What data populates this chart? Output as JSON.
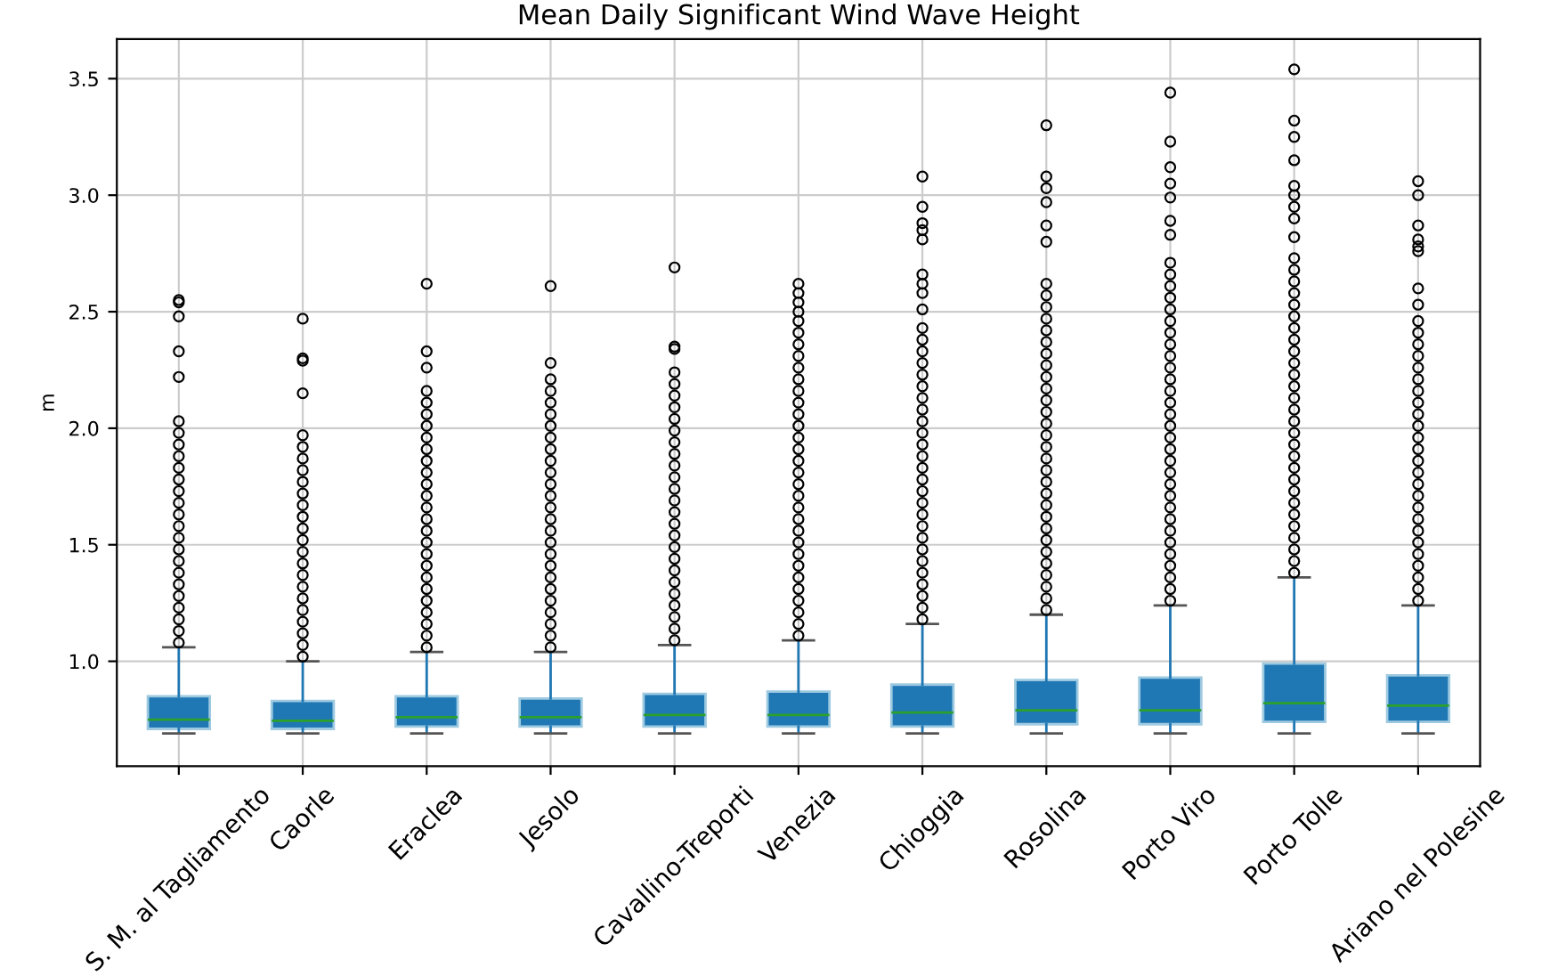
{
  "chart_data": {
    "type": "box",
    "title": "Mean Daily Significant Wind Wave Height",
    "ylabel": "m",
    "categories": [
      "S. M. al Tagliamento",
      "Caorle",
      "Eraclea",
      "Jesolo",
      "Cavallino-Treporti",
      "Venezia",
      "Chioggia",
      "Rosolina",
      "Porto Viro",
      "Porto Tolle",
      "Ariano nel Polesine"
    ],
    "series": [
      {
        "color": "#1f77b4",
        "boxes": [
          {
            "low": 0.69,
            "q1": 0.71,
            "median": 0.75,
            "q3": 0.85,
            "high": 1.06,
            "outliers": [
              1.08,
              1.13,
              1.18,
              1.23,
              1.28,
              1.33,
              1.38,
              1.43,
              1.48,
              1.53,
              1.58,
              1.63,
              1.68,
              1.73,
              1.78,
              1.83,
              1.88,
              1.93,
              1.98,
              2.03,
              2.22,
              2.33,
              2.48,
              2.54,
              2.55
            ]
          },
          {
            "low": 0.69,
            "q1": 0.71,
            "median": 0.745,
            "q3": 0.83,
            "high": 1.0,
            "outliers": [
              1.02,
              1.07,
              1.12,
              1.17,
              1.22,
              1.27,
              1.32,
              1.37,
              1.42,
              1.47,
              1.52,
              1.57,
              1.62,
              1.67,
              1.72,
              1.77,
              1.82,
              1.87,
              1.92,
              1.97,
              2.15,
              2.29,
              2.3,
              2.47
            ]
          },
          {
            "low": 0.69,
            "q1": 0.72,
            "median": 0.76,
            "q3": 0.85,
            "high": 1.04,
            "outliers": [
              1.06,
              1.11,
              1.16,
              1.21,
              1.26,
              1.31,
              1.36,
              1.41,
              1.46,
              1.51,
              1.56,
              1.61,
              1.66,
              1.71,
              1.76,
              1.81,
              1.86,
              1.91,
              1.96,
              2.01,
              2.06,
              2.11,
              2.16,
              2.26,
              2.33,
              2.62
            ]
          },
          {
            "low": 0.69,
            "q1": 0.72,
            "median": 0.76,
            "q3": 0.84,
            "high": 1.04,
            "outliers": [
              1.06,
              1.11,
              1.16,
              1.21,
              1.26,
              1.31,
              1.36,
              1.41,
              1.46,
              1.51,
              1.56,
              1.61,
              1.66,
              1.71,
              1.76,
              1.81,
              1.86,
              1.91,
              1.96,
              2.01,
              2.06,
              2.11,
              2.16,
              2.21,
              2.28,
              2.61
            ]
          },
          {
            "low": 0.69,
            "q1": 0.72,
            "median": 0.77,
            "q3": 0.86,
            "high": 1.07,
            "outliers": [
              1.09,
              1.14,
              1.19,
              1.24,
              1.29,
              1.34,
              1.39,
              1.44,
              1.49,
              1.54,
              1.59,
              1.64,
              1.69,
              1.74,
              1.79,
              1.84,
              1.89,
              1.94,
              1.99,
              2.04,
              2.09,
              2.14,
              2.19,
              2.24,
              2.34,
              2.35,
              2.69
            ]
          },
          {
            "low": 0.69,
            "q1": 0.72,
            "median": 0.77,
            "q3": 0.87,
            "high": 1.09,
            "outliers": [
              1.11,
              1.16,
              1.21,
              1.26,
              1.31,
              1.36,
              1.41,
              1.46,
              1.51,
              1.56,
              1.61,
              1.66,
              1.71,
              1.76,
              1.81,
              1.86,
              1.91,
              1.96,
              2.01,
              2.06,
              2.11,
              2.16,
              2.21,
              2.26,
              2.31,
              2.36,
              2.41,
              2.46,
              2.5,
              2.54,
              2.58,
              2.62
            ]
          },
          {
            "low": 0.69,
            "q1": 0.72,
            "median": 0.78,
            "q3": 0.9,
            "high": 1.16,
            "outliers": [
              1.18,
              1.23,
              1.28,
              1.33,
              1.38,
              1.43,
              1.48,
              1.53,
              1.58,
              1.63,
              1.68,
              1.73,
              1.78,
              1.83,
              1.88,
              1.93,
              1.98,
              2.03,
              2.08,
              2.13,
              2.18,
              2.23,
              2.28,
              2.33,
              2.38,
              2.43,
              2.51,
              2.58,
              2.62,
              2.66,
              2.81,
              2.85,
              2.88,
              2.95,
              3.08
            ]
          },
          {
            "low": 0.69,
            "q1": 0.73,
            "median": 0.79,
            "q3": 0.92,
            "high": 1.2,
            "outliers": [
              1.22,
              1.27,
              1.32,
              1.37,
              1.42,
              1.47,
              1.52,
              1.57,
              1.62,
              1.67,
              1.72,
              1.77,
              1.82,
              1.87,
              1.92,
              1.97,
              2.02,
              2.07,
              2.12,
              2.17,
              2.22,
              2.27,
              2.32,
              2.37,
              2.42,
              2.47,
              2.52,
              2.57,
              2.62,
              2.8,
              2.87,
              2.97,
              3.03,
              3.08,
              3.3
            ]
          },
          {
            "low": 0.69,
            "q1": 0.73,
            "median": 0.79,
            "q3": 0.93,
            "high": 1.24,
            "outliers": [
              1.26,
              1.31,
              1.36,
              1.41,
              1.46,
              1.51,
              1.56,
              1.61,
              1.66,
              1.71,
              1.76,
              1.81,
              1.86,
              1.91,
              1.96,
              2.01,
              2.06,
              2.11,
              2.16,
              2.21,
              2.26,
              2.31,
              2.36,
              2.41,
              2.46,
              2.51,
              2.56,
              2.61,
              2.66,
              2.71,
              2.83,
              2.89,
              2.99,
              3.05,
              3.12,
              3.23,
              3.44
            ]
          },
          {
            "low": 0.69,
            "q1": 0.74,
            "median": 0.82,
            "q3": 0.99,
            "high": 1.36,
            "outliers": [
              1.38,
              1.43,
              1.48,
              1.53,
              1.58,
              1.63,
              1.68,
              1.73,
              1.78,
              1.83,
              1.88,
              1.93,
              1.98,
              2.03,
              2.08,
              2.13,
              2.18,
              2.23,
              2.28,
              2.33,
              2.38,
              2.43,
              2.48,
              2.53,
              2.58,
              2.63,
              2.68,
              2.73,
              2.82,
              2.9,
              2.95,
              3.0,
              3.04,
              3.15,
              3.25,
              3.32,
              3.54
            ]
          },
          {
            "low": 0.69,
            "q1": 0.74,
            "median": 0.81,
            "q3": 0.94,
            "high": 1.24,
            "outliers": [
              1.26,
              1.31,
              1.36,
              1.41,
              1.46,
              1.51,
              1.56,
              1.61,
              1.66,
              1.71,
              1.76,
              1.81,
              1.86,
              1.91,
              1.96,
              2.01,
              2.06,
              2.11,
              2.16,
              2.21,
              2.26,
              2.31,
              2.36,
              2.41,
              2.46,
              2.53,
              2.6,
              2.76,
              2.78,
              2.81,
              2.87,
              3.0,
              3.06
            ]
          }
        ]
      }
    ],
    "ylim": [
      0.55,
      3.67
    ],
    "yticks": [
      {
        "value": 1,
        "label": "1.0"
      },
      1.5,
      {
        "value": 2,
        "label": "2.0"
      },
      2.5,
      {
        "value": 3,
        "label": "3.0"
      },
      3.5
    ],
    "grid": true,
    "marker": "circle"
  }
}
